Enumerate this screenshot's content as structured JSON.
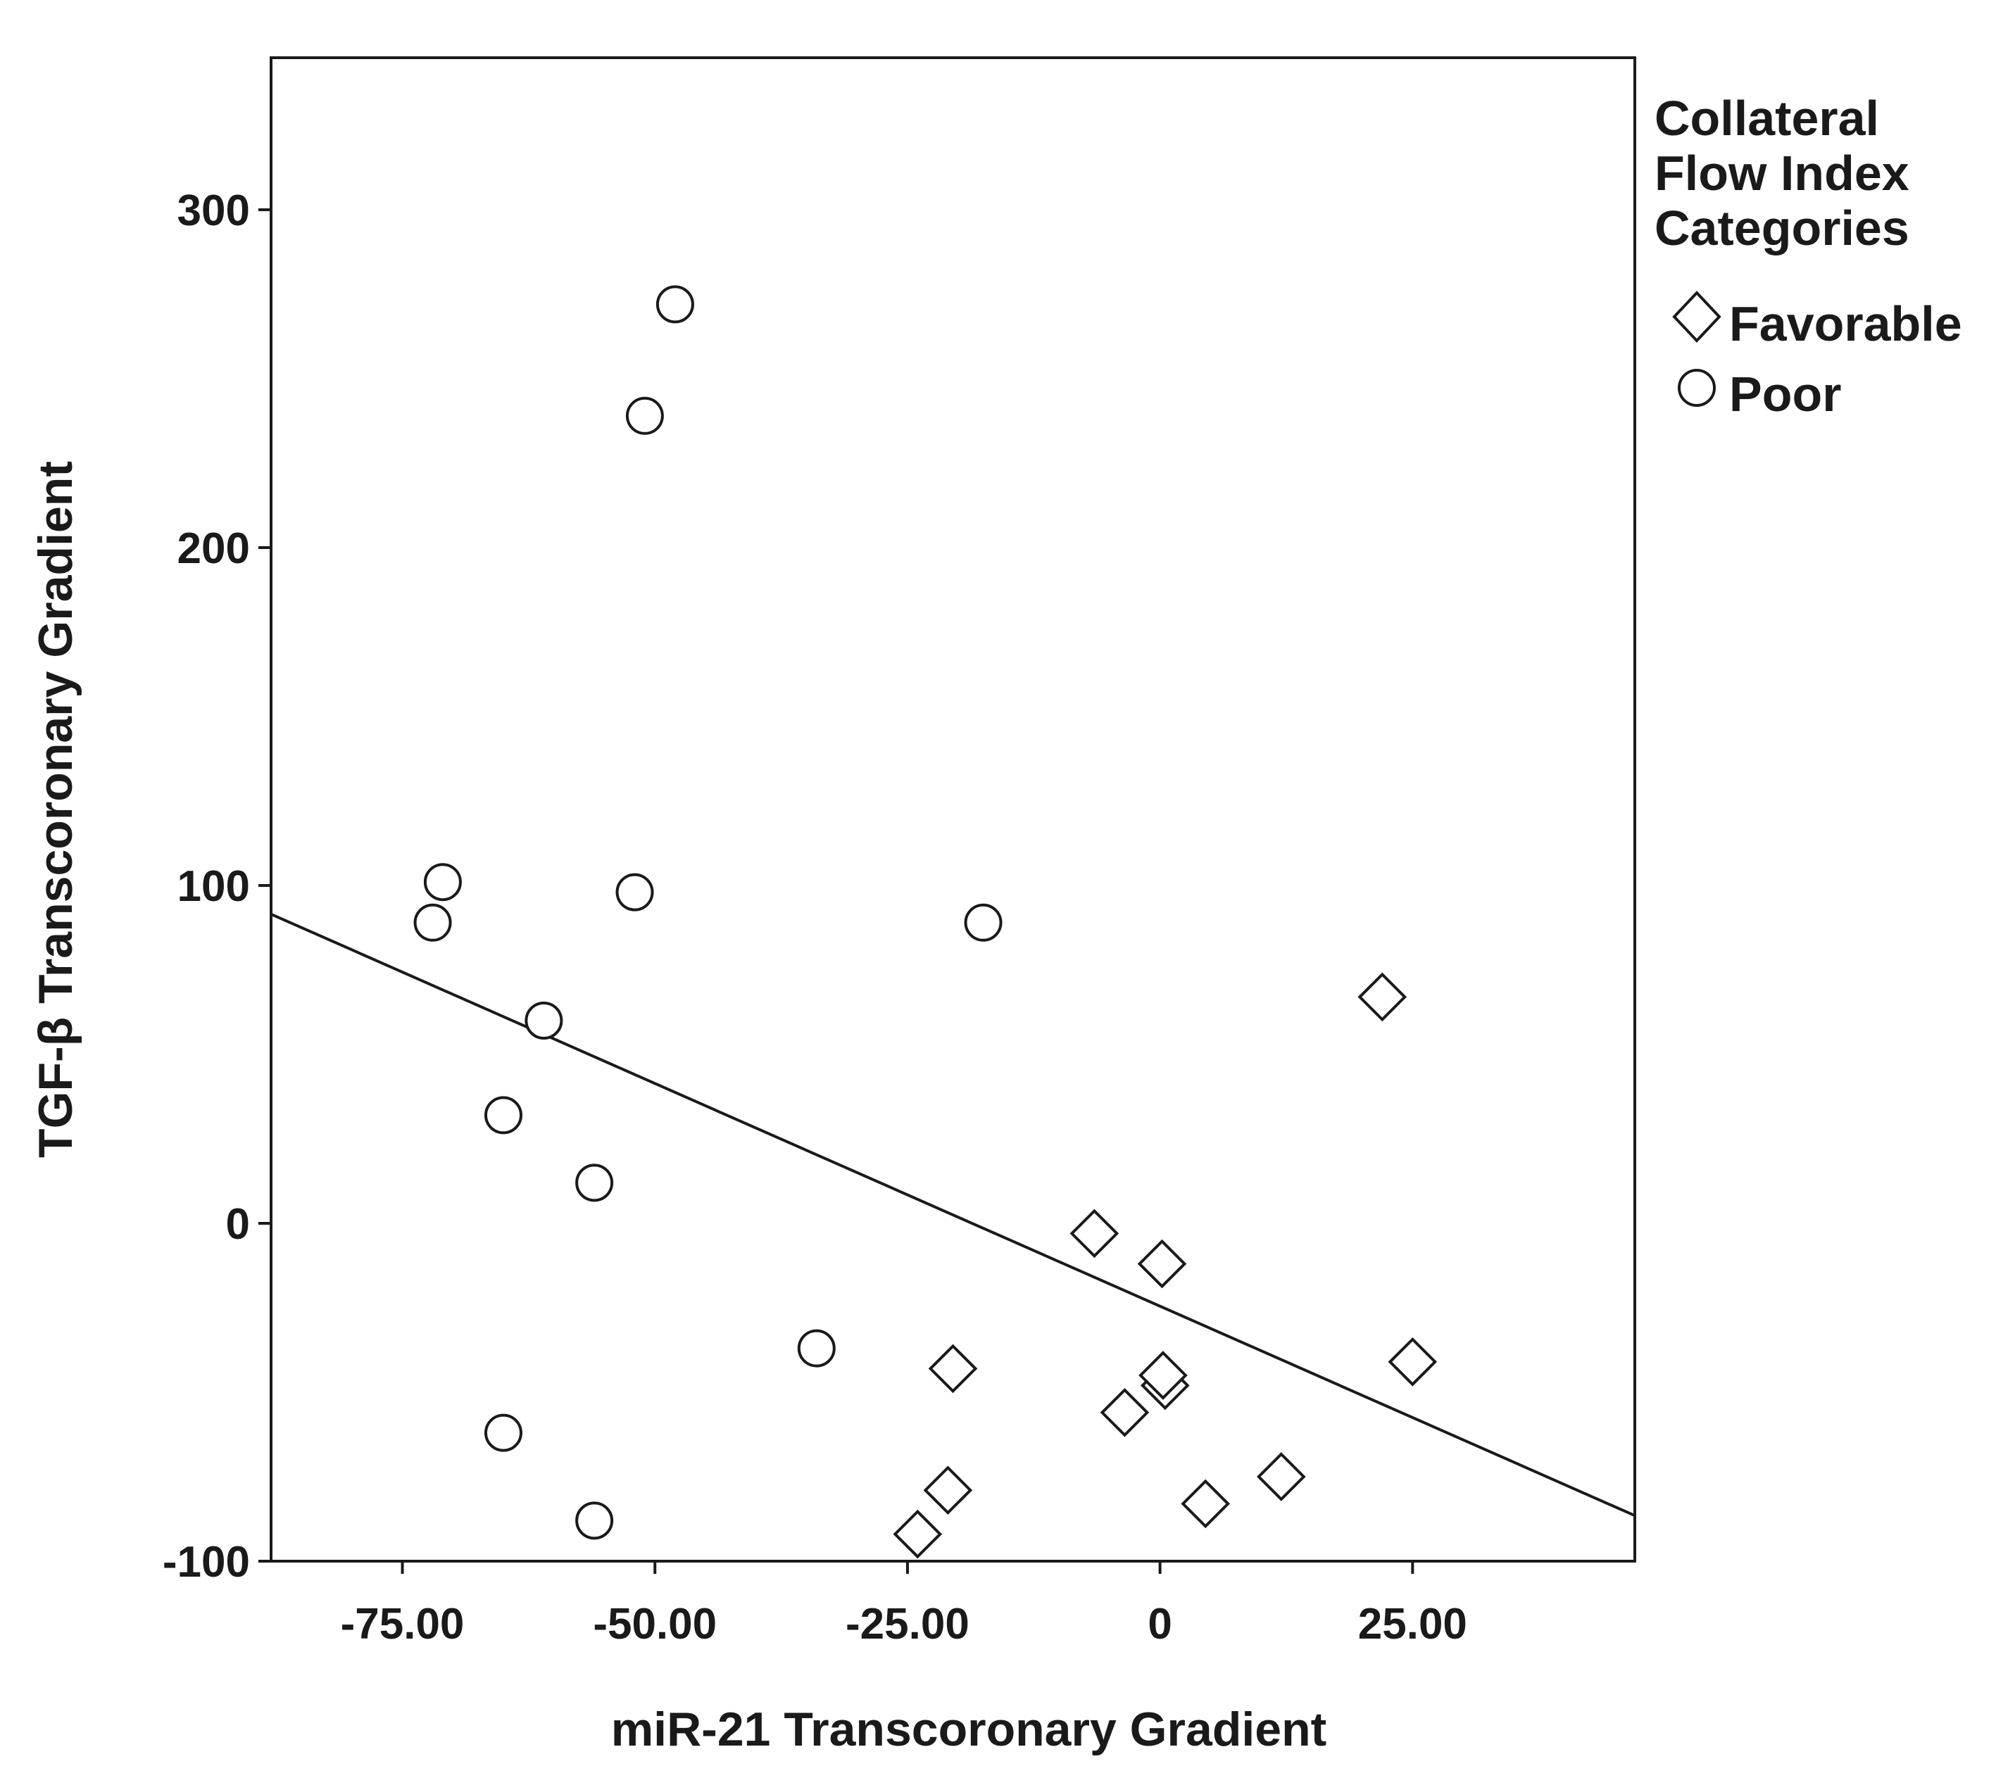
{
  "chart_data": {
    "type": "scatter",
    "xlabel": "miR-21 Transcoronary Gradient",
    "ylabel": "TGF-β Transcoronary Gradient",
    "xlim": [
      -88,
      47
    ],
    "ylim": [
      -100,
      345
    ],
    "x_ticks": [
      {
        "value": -75,
        "label": "-75.00"
      },
      {
        "value": -50,
        "label": "-50.00"
      },
      {
        "value": -25,
        "label": "-25.00"
      },
      {
        "value": 0,
        "label": "0"
      },
      {
        "value": 25,
        "label": "25.00"
      }
    ],
    "y_ticks": [
      {
        "value": -100,
        "label": "-100"
      },
      {
        "value": 0,
        "label": "0"
      },
      {
        "value": 100,
        "label": "100"
      },
      {
        "value": 200,
        "label": "200"
      },
      {
        "value": 300,
        "label": "300"
      }
    ],
    "grid": false,
    "legend": {
      "title_lines": [
        "Collateral",
        "Flow Index",
        "Categories"
      ],
      "placement": "right",
      "entries": [
        {
          "name": "Favorable",
          "marker": "diamond"
        },
        {
          "name": "Poor",
          "marker": "circle"
        }
      ]
    },
    "series": [
      {
        "name": "Favorable",
        "marker": "diamond",
        "points": [
          {
            "x": -6.5,
            "y": -3
          },
          {
            "x": 0.2,
            "y": -12
          },
          {
            "x": -3.5,
            "y": -56
          },
          {
            "x": 0.5,
            "y": -48
          },
          {
            "x": 0.3,
            "y": -45
          },
          {
            "x": -20.5,
            "y": -43
          },
          {
            "x": -21,
            "y": -79
          },
          {
            "x": -24,
            "y": -92
          },
          {
            "x": 4.5,
            "y": -83
          },
          {
            "x": 12,
            "y": -75
          },
          {
            "x": 22,
            "y": 67
          },
          {
            "x": 25,
            "y": -41
          }
        ]
      },
      {
        "name": "Poor",
        "marker": "circle",
        "points": [
          {
            "x": -48,
            "y": 272
          },
          {
            "x": -51,
            "y": 239
          },
          {
            "x": -71,
            "y": 101
          },
          {
            "x": -72,
            "y": 89
          },
          {
            "x": -52,
            "y": 98
          },
          {
            "x": -17.5,
            "y": 89
          },
          {
            "x": -61,
            "y": 60
          },
          {
            "x": -65,
            "y": 32
          },
          {
            "x": -56,
            "y": 12
          },
          {
            "x": -34,
            "y": -37
          },
          {
            "x": -65,
            "y": -62
          },
          {
            "x": -56,
            "y": -88
          }
        ]
      }
    ],
    "fit_line": {
      "x": [
        -88,
        47
      ],
      "y": [
        91.5,
        -86.5
      ]
    },
    "colors": {
      "axis": "#1a1a1a",
      "marker_fill": "#ffffff",
      "marker_stroke": "#1a1a1a",
      "line": "#1a1a1a"
    }
  }
}
